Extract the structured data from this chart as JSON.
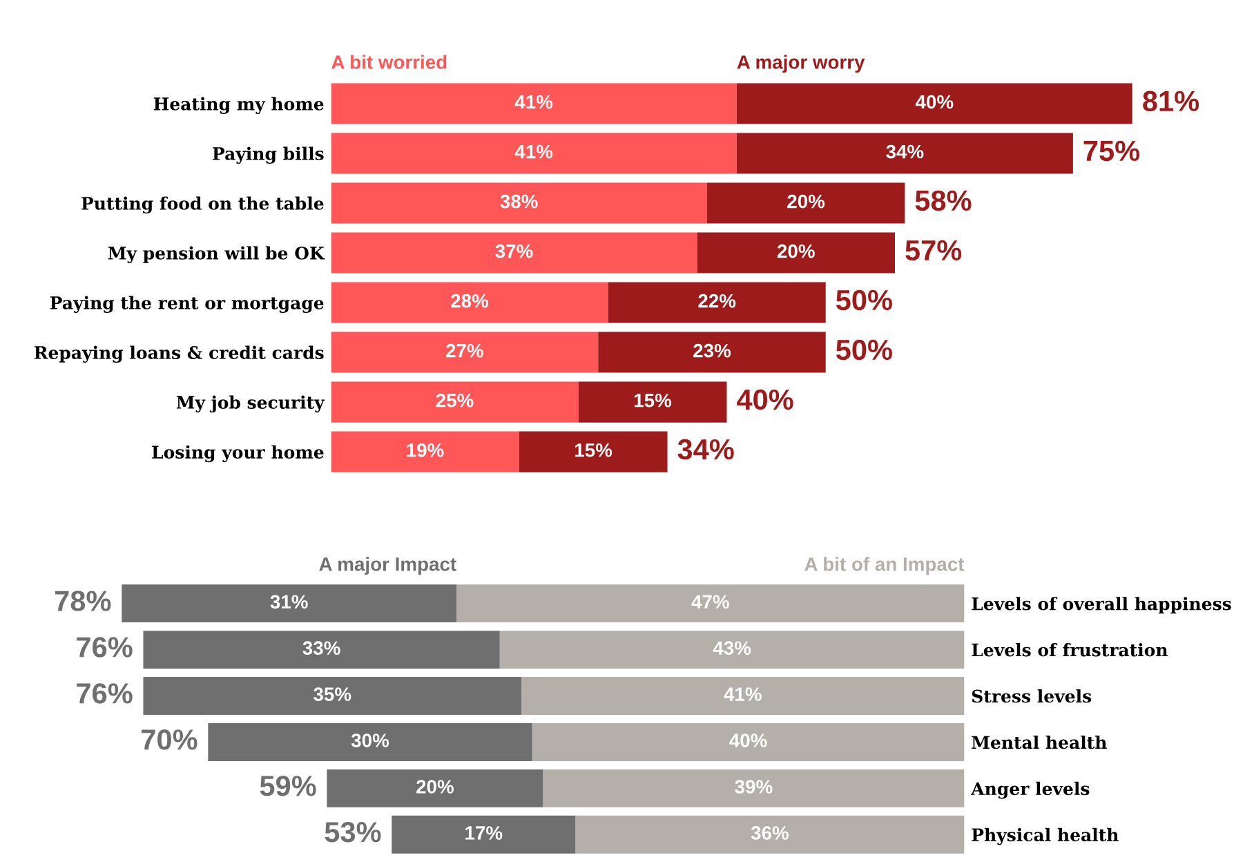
{
  "chart_data": [
    {
      "type": "bar",
      "orientation": "horizontal",
      "stacked": true,
      "legend": "top",
      "tick_labels": "y",
      "xlim": [
        0,
        81
      ],
      "categories": [
        "Heating my home",
        "Paying bills",
        "Putting food on the table",
        "My pension will be OK",
        "Paying the rent or mortgage",
        "Repaying loans & credit cards",
        "My job security",
        "Losing your home"
      ],
      "series": [
        {
          "name": "A bit worried",
          "color": "#ff5757",
          "values": [
            41,
            41,
            38,
            37,
            28,
            27,
            25,
            19
          ],
          "value_labels": [
            "41%",
            "41%",
            "38%",
            "37%",
            "28%",
            "27%",
            "25%",
            "19%"
          ]
        },
        {
          "name": "A major worry",
          "color": "#9e1b1b",
          "values": [
            40,
            34,
            20,
            20,
            22,
            23,
            15,
            15
          ],
          "value_labels": [
            "40%",
            "34%",
            "20%",
            "20%",
            "22%",
            "23%",
            "15%",
            "15%"
          ]
        }
      ],
      "totals": [
        "81%",
        "75%",
        "58%",
        "57%",
        "50%",
        "50%",
        "40%",
        "34%"
      ]
    },
    {
      "type": "bar",
      "orientation": "horizontal",
      "stacked": true,
      "legend": "top",
      "tick_labels": "y",
      "categories": [
        "Levels of overall happiness",
        "Levels of frustration",
        "Stress levels",
        "Mental health",
        "Anger levels",
        "Physical health"
      ],
      "xlim": [
        78,
        0
      ],
      "series": [
        {
          "name": "A bit of an Impact",
          "color": "#b4afa9",
          "values": [
            47,
            43,
            41,
            40,
            39,
            36
          ],
          "value_labels": [
            "47%",
            "43%",
            "41%",
            "40%",
            "39%",
            "36%"
          ]
        },
        {
          "name": "A major Impact",
          "color": "#6f6f6f",
          "values": [
            31,
            33,
            35,
            30,
            20,
            17
          ],
          "value_labels": [
            "31%",
            "33%",
            "35%",
            "30%",
            "20%",
            "17%"
          ]
        }
      ],
      "totals": [
        "78%",
        "76%",
        "76%",
        "70%",
        "59%",
        "53%"
      ]
    }
  ]
}
